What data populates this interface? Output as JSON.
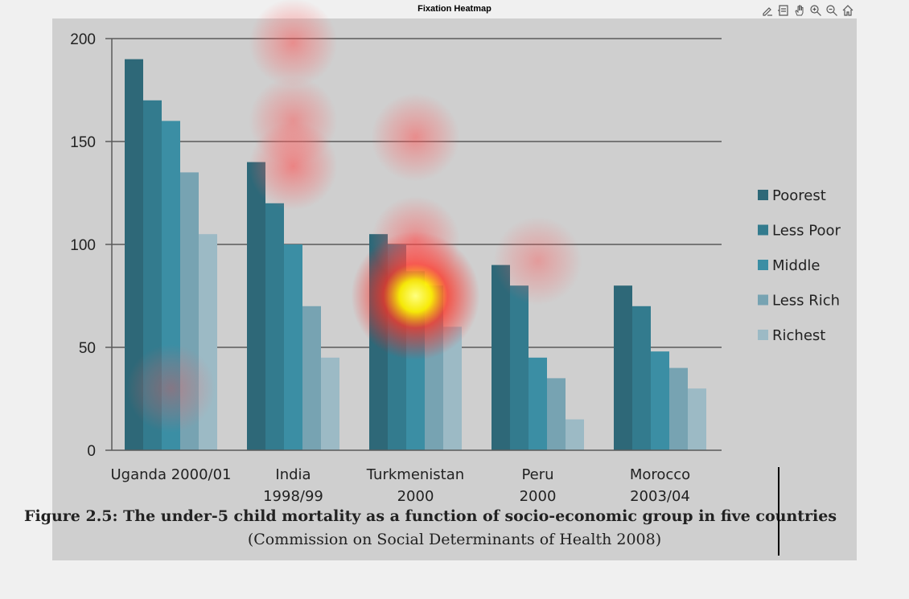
{
  "window": {
    "title": "Fixation Heatmap"
  },
  "toolbar": {
    "tools": [
      {
        "name": "edit-icon"
      },
      {
        "name": "subplots-icon"
      },
      {
        "name": "pan-icon"
      },
      {
        "name": "zoom-in-icon"
      },
      {
        "name": "zoom-out-icon"
      },
      {
        "name": "home-icon"
      }
    ]
  },
  "chart_data": {
    "type": "bar",
    "categories": [
      "Uganda 2000/01",
      "India 1998/99",
      "Turkmenistan 2000",
      "Peru 2000",
      "Morocco 2003/04"
    ],
    "category_lines": [
      [
        "Uganda 2000/01"
      ],
      [
        "India",
        "1998/99"
      ],
      [
        "Turkmenistan",
        "2000"
      ],
      [
        "Peru",
        "2000"
      ],
      [
        "Morocco",
        "2003/04"
      ]
    ],
    "series": [
      {
        "name": "Poorest",
        "color": "#2e6878",
        "values": [
          190,
          140,
          105,
          90,
          80
        ]
      },
      {
        "name": "Less Poor",
        "color": "#337b8e",
        "values": [
          170,
          120,
          100,
          80,
          70
        ]
      },
      {
        "name": "Middle",
        "color": "#3b8ea4",
        "values": [
          160,
          100,
          87,
          45,
          48
        ]
      },
      {
        "name": "Less Rich",
        "color": "#77a3b2",
        "values": [
          135,
          70,
          80,
          35,
          40
        ]
      },
      {
        "name": "Richest",
        "color": "#9cbac5",
        "values": [
          105,
          45,
          60,
          15,
          30
        ]
      }
    ],
    "yticks": [
      "0",
      "50",
      "100",
      "150",
      "200"
    ],
    "ylim": [
      0,
      200
    ],
    "grid": true,
    "legend_position": "right",
    "caption": "Figure 2.5: The under-5 child mortality as a function of socio-economic group in five countries",
    "subcaption": "(Commission on Social Determinants of Health 2008)",
    "overlay": {
      "type": "fixation-heatmap",
      "hotspots": [
        {
          "x_category": 2,
          "y_value": 75,
          "intensity": 1.0
        },
        {
          "x_category": 2,
          "y_value": 102,
          "intensity": 0.55
        },
        {
          "x_category": 1,
          "y_value": 138,
          "intensity": 0.6
        },
        {
          "x_category": 1,
          "y_value": 160,
          "intensity": 0.45
        },
        {
          "x_category": 1,
          "y_value": 198,
          "intensity": 0.5
        },
        {
          "x_category": 2,
          "y_value": 152,
          "intensity": 0.5
        },
        {
          "x_category": 3,
          "y_value": 92,
          "intensity": 0.35
        },
        {
          "x_category": 0,
          "y_value": 30,
          "intensity": 0.3
        }
      ]
    }
  }
}
